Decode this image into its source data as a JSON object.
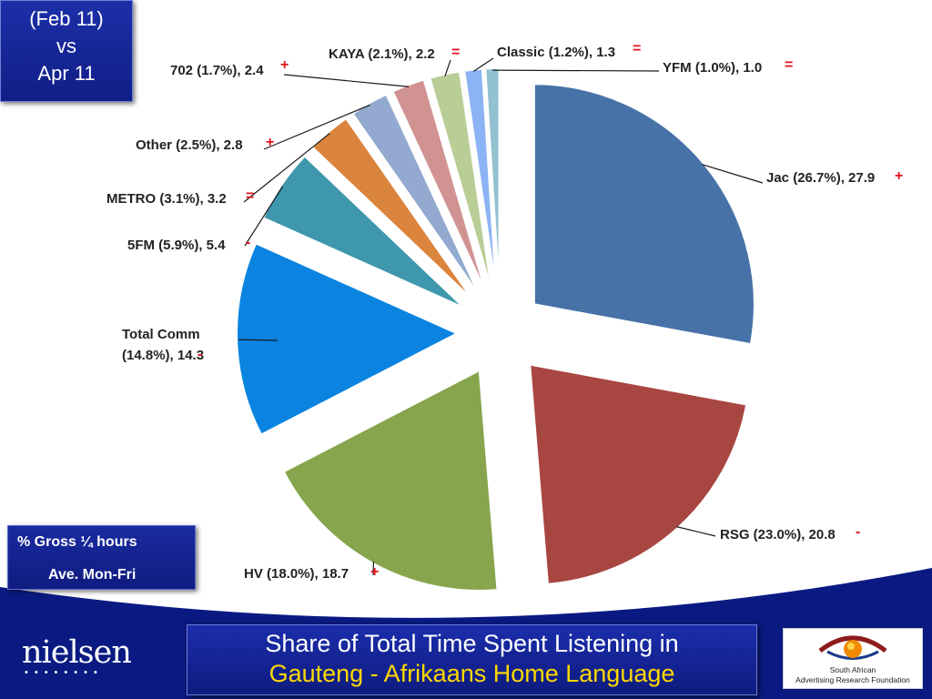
{
  "period": {
    "line1": "(Feb 11)",
    "line2": "vs",
    "line3": "Apr 11"
  },
  "measure": {
    "line1": "% Gross ¼ hours",
    "line2": "Ave. Mon-Fri"
  },
  "title": {
    "line1": "Share of Total Time Spent Listening in",
    "line2": "Gauteng - Afrikaans Home Language"
  },
  "brand": {
    "nielsen": "nielsen",
    "nielsen_dots": "••••••••",
    "saarf_line1": "South African",
    "saarf_line2": "Advertising Research Foundation"
  },
  "colors": {
    "background_footer": "#0b1a82",
    "accent_yellow": "#ffd800",
    "change_marker": "#e3101d"
  },
  "chart_data": {
    "type": "pie",
    "slices": [
      {
        "label": "Jac (26.7%), 27.9",
        "station": "Jac",
        "previous_share": 26.7,
        "value": 27.9,
        "change": "+",
        "color": "#4672a8"
      },
      {
        "label": "RSG (23.0%), 20.8",
        "station": "RSG",
        "previous_share": 23.0,
        "value": 20.8,
        "change": "-",
        "color": "#a84641"
      },
      {
        "label": "HV (18.0%), 18.7",
        "station": "HV",
        "previous_share": 18.0,
        "value": 18.7,
        "change": "+",
        "color": "#86a54c"
      },
      {
        "label": "Total Comm (14.8%), 14.3",
        "station": "Total Comm",
        "previous_share": 14.8,
        "value": 14.3,
        "change": "-",
        "color": "#0a84e0"
      },
      {
        "label": "5FM (5.9%), 5.4",
        "station": "5FM",
        "previous_share": 5.9,
        "value": 5.4,
        "change": "-",
        "color": "#3f97ad"
      },
      {
        "label": "METRO (3.1%), 3.2",
        "station": "METRO",
        "previous_share": 3.1,
        "value": 3.2,
        "change": "=",
        "color": "#db843d"
      },
      {
        "label": "Other (2.5%), 2.8",
        "station": "Other",
        "previous_share": 2.5,
        "value": 2.8,
        "change": "+",
        "color": "#93a9cf"
      },
      {
        "label": "702 (1.7%), 2.4",
        "station": "702",
        "previous_share": 1.7,
        "value": 2.4,
        "change": "+",
        "color": "#d19392"
      },
      {
        "label": "KAYA (2.1%), 2.2",
        "station": "KAYA",
        "previous_share": 2.1,
        "value": 2.2,
        "change": "=",
        "color": "#b9cd96"
      },
      {
        "label": "Classic (1.2%), 1.3",
        "station": "Classic",
        "previous_share": 1.2,
        "value": 1.3,
        "change": "=",
        "color": "#8cb3f5"
      },
      {
        "label": "YFM (1.0%), 1.0",
        "station": "YFM",
        "previous_share": 1.0,
        "value": 1.0,
        "change": "=",
        "color": "#92c1d0"
      }
    ]
  }
}
